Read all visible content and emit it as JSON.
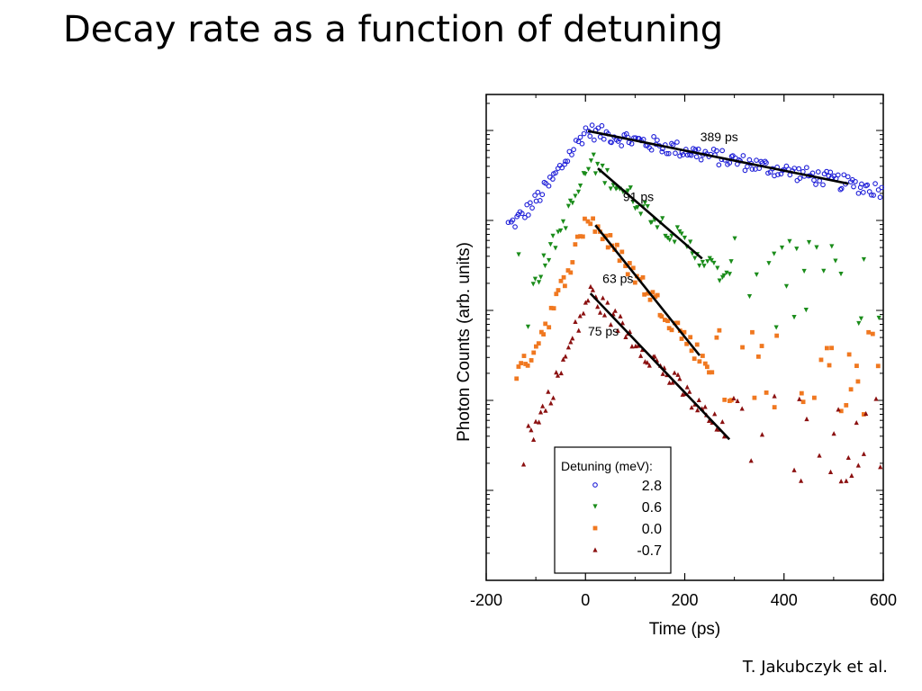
{
  "slide": {
    "title": "Decay rate as a function of detuning",
    "credit": "T. Jakubczyk et al."
  },
  "chart_data": {
    "type": "scatter",
    "title": "",
    "xlabel": "Time (ps)",
    "ylabel": "Photon Counts (arb. units)",
    "xlim": [
      -200,
      600
    ],
    "x_ticks": [
      -200,
      0,
      200,
      400,
      600
    ],
    "y_scale": "log",
    "y_range_decades": [
      0,
      5.4
    ],
    "legend": {
      "title": "Detuning (meV):",
      "position": "bottom-left",
      "entries": [
        "2.8",
        "0.6",
        "0.0",
        "-0.7"
      ]
    },
    "series": [
      {
        "name": "2.8",
        "color": "#1f1fd8",
        "marker": "circle",
        "onset": -155,
        "peak_time": 0,
        "peak_level": 5.0,
        "rise_ps": 155,
        "start_level": 3.95,
        "decay_ps": 389,
        "noise": 0.09,
        "step": 4,
        "x_max": 600,
        "fit": {
          "label": "389 ps",
          "x": [
            5,
            530
          ],
          "decay_ps": 389
        }
      },
      {
        "name": "0.6",
        "color": "#1a8c1a",
        "marker": "triangle-down",
        "onset": -150,
        "peak_time": 10,
        "peak_level": 4.65,
        "rise_ps": 150,
        "start_level": 3.0,
        "decay_ps": 91,
        "noise": 0.11,
        "step": 5,
        "x_max": 590,
        "floor": 3.3,
        "fit": {
          "label": "91 ps",
          "x": [
            25,
            235
          ],
          "decay_ps": 91
        }
      },
      {
        "name": "0.0",
        "color": "#f07820",
        "marker": "square",
        "onset": -140,
        "peak_time": 5,
        "peak_level": 4.05,
        "rise_ps": 140,
        "start_level": 2.3,
        "decay_ps": 63,
        "noise": 0.11,
        "step": 5,
        "x_max": 590,
        "floor": 2.3,
        "fit": {
          "label": "63 ps",
          "x": [
            20,
            230
          ],
          "decay_ps": 63
        }
      },
      {
        "name": "-0.7",
        "color": "#8b1010",
        "marker": "triangle-up",
        "onset": -150,
        "peak_time": 8,
        "peak_level": 3.2,
        "rise_ps": 150,
        "start_level": 1.3,
        "decay_ps": 75,
        "noise": 0.12,
        "step": 5,
        "x_max": 600,
        "floor": 1.6,
        "fit": {
          "label": "75 ps",
          "x": [
            10,
            290
          ],
          "decay_ps": 75
        }
      }
    ]
  }
}
